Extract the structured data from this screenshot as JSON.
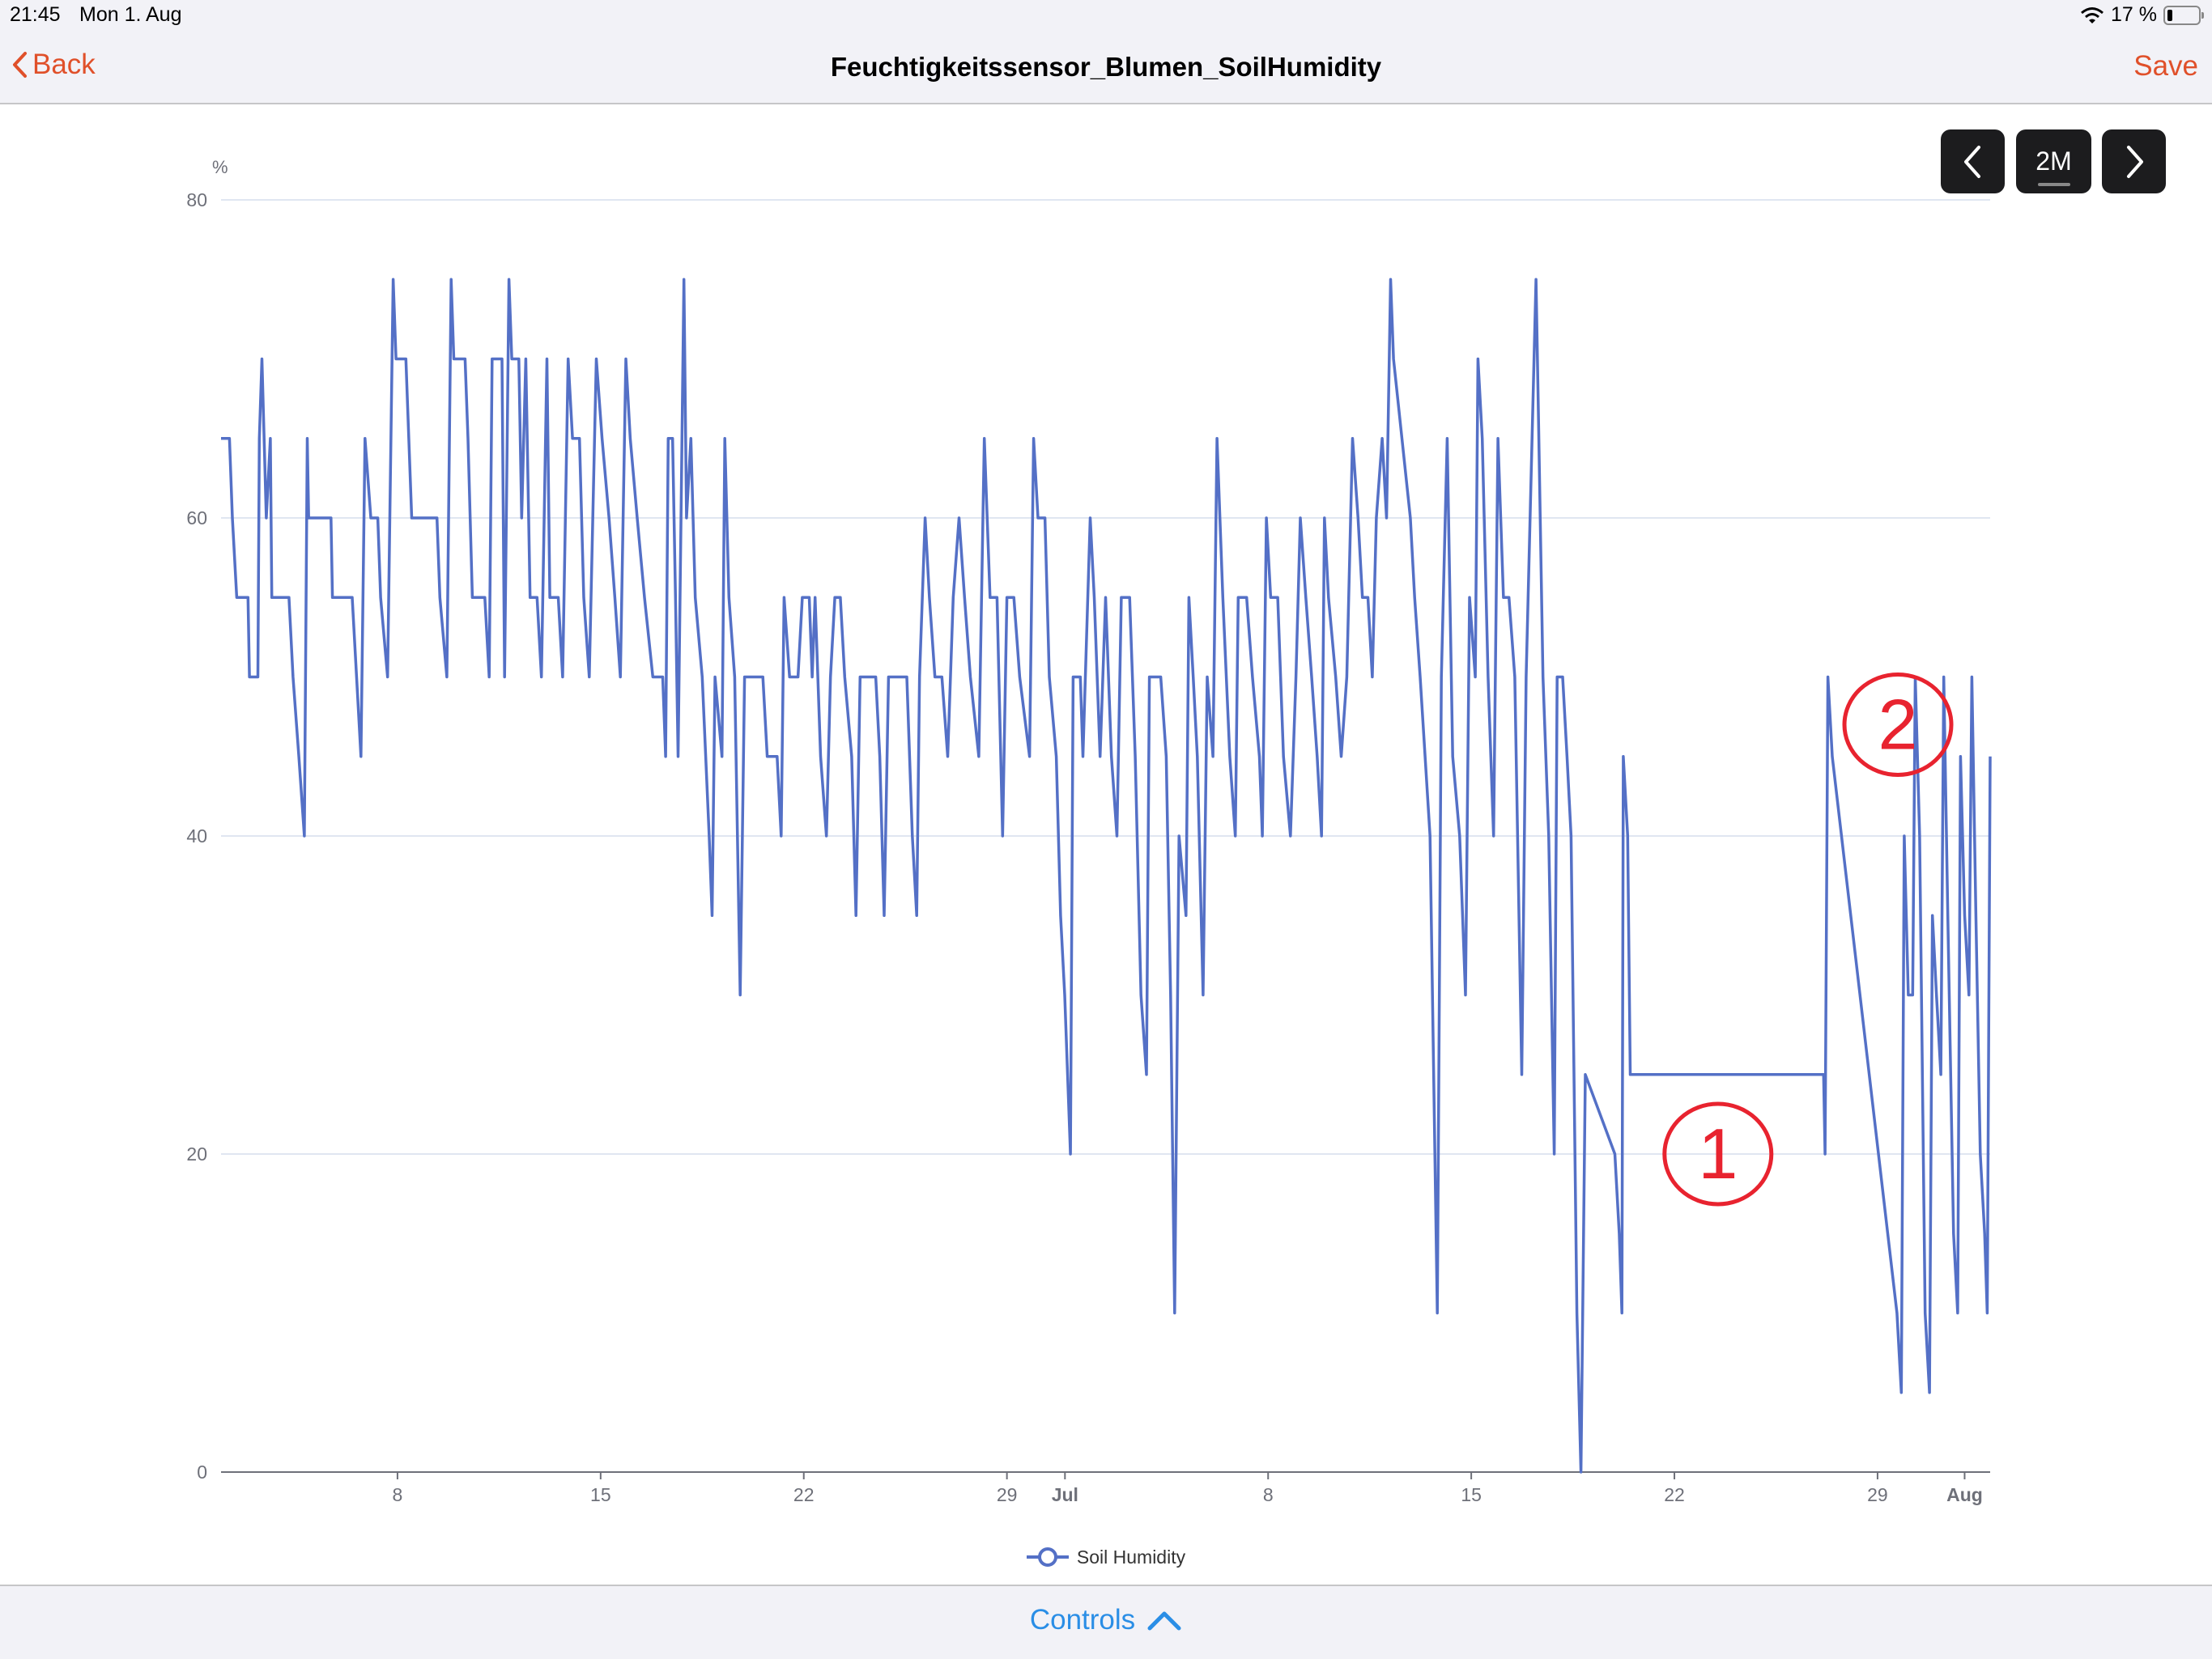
{
  "status_bar": {
    "time": "21:45",
    "date": "Mon 1. Aug",
    "battery": "17 %",
    "battery_level": 0.17
  },
  "nav": {
    "back_label": "Back",
    "title": "Feuchtigkeitssensor_Blumen_SoilHumidity",
    "save_label": "Save"
  },
  "range_controls": {
    "prev_icon": "chevron-left-icon",
    "range_label": "2M",
    "next_icon": "chevron-right-icon"
  },
  "footer": {
    "controls_label": "Controls",
    "icon": "chevron-up-icon"
  },
  "colors": {
    "accent": "#e0502a",
    "series": "#5470c6",
    "link": "#2a8ee6",
    "annotation": "#e8232f"
  },
  "annotations": [
    {
      "text": "1",
      "near_day": 52.5,
      "near_value": 20
    },
    {
      "text": "2",
      "near_day": 58.7,
      "near_value": 47
    }
  ],
  "chart_data": {
    "type": "line",
    "title": "",
    "ylabel": "%",
    "xlabel": "",
    "ylim": [
      0,
      80
    ],
    "yticks": [
      0,
      20,
      40,
      60,
      80
    ],
    "xlim": [
      0.92,
      61.88
    ],
    "xticks": [
      {
        "day": 7,
        "label": "8"
      },
      {
        "day": 14,
        "label": "15"
      },
      {
        "day": 21,
        "label": "22"
      },
      {
        "day": 28,
        "label": "29"
      },
      {
        "day": 30,
        "label": "Jul",
        "bold": true
      },
      {
        "day": 37,
        "label": "8"
      },
      {
        "day": 44,
        "label": "15"
      },
      {
        "day": 51,
        "label": "22"
      },
      {
        "day": 58,
        "label": "29"
      },
      {
        "day": 61,
        "label": "Aug",
        "bold": true
      }
    ],
    "grid": true,
    "legend": {
      "position": "bottom-center",
      "entries": [
        "Soil Humidity"
      ]
    },
    "series": [
      {
        "name": "Soil Humidity",
        "x_days_from_jun1": [
          0.92,
          1.21,
          1.31,
          1.46,
          1.85,
          1.9,
          2.19,
          2.24,
          2.33,
          2.48,
          2.62,
          2.67,
          3.26,
          3.4,
          3.6,
          3.79,
          3.89,
          3.94,
          4.71,
          4.76,
          5.44,
          5.59,
          5.74,
          5.88,
          6.08,
          6.32,
          6.42,
          6.66,
          6.85,
          6.95,
          7.29,
          7.39,
          7.49,
          8.36,
          8.46,
          8.7,
          8.85,
          8.94,
          9.33,
          9.43,
          9.58,
          10.01,
          10.16,
          10.26,
          10.6,
          10.69,
          10.84,
          10.94,
          11.18,
          11.28,
          11.42,
          11.57,
          11.81,
          11.96,
          12.15,
          12.25,
          12.54,
          12.69,
          12.88,
          13.03,
          13.27,
          13.42,
          13.61,
          13.85,
          14.05,
          14.29,
          14.49,
          14.68,
          14.87,
          15.02,
          15.26,
          15.51,
          15.8,
          16.14,
          16.24,
          16.33,
          16.48,
          16.58,
          16.67,
          16.87,
          16.96,
          17.11,
          17.26,
          17.5,
          17.74,
          17.84,
          17.94,
          18.18,
          18.28,
          18.42,
          18.62,
          18.81,
          18.96,
          19.59,
          19.74,
          20.08,
          20.22,
          20.32,
          20.51,
          20.8,
          20.95,
          21.19,
          21.29,
          21.39,
          21.58,
          21.78,
          21.92,
          22.07,
          22.26,
          22.41,
          22.65,
          22.8,
          22.94,
          23.48,
          23.62,
          23.77,
          23.92,
          24.55,
          24.74,
          24.89,
          24.99,
          25.18,
          25.33,
          25.52,
          25.76,
          25.96,
          26.15,
          26.35,
          26.54,
          26.74,
          27.03,
          27.22,
          27.42,
          27.66,
          27.85,
          28.0,
          28.24,
          28.44,
          28.78,
          28.92,
          29.07,
          29.31,
          29.46,
          29.7,
          29.85,
          29.99,
          30.19,
          30.28,
          30.53,
          30.62,
          30.87,
          31.01,
          31.21,
          31.4,
          31.6,
          31.79,
          31.94,
          32.23,
          32.42,
          32.62,
          32.81,
          32.91,
          33.3,
          33.49,
          33.64,
          33.78,
          33.93,
          34.17,
          34.27,
          34.42,
          34.56,
          34.76,
          34.9,
          35.1,
          35.24,
          35.44,
          35.68,
          35.87,
          35.97,
          36.26,
          36.46,
          36.7,
          36.8,
          36.94,
          37.09,
          37.33,
          37.53,
          37.77,
          37.96,
          38.11,
          38.3,
          38.5,
          38.69,
          38.84,
          38.94,
          39.08,
          39.33,
          39.52,
          39.71,
          39.91,
          40.1,
          40.25,
          40.44,
          40.59,
          40.73,
          40.93,
          41.08,
          41.22,
          41.32,
          41.9,
          42.05,
          42.24,
          42.58,
          42.83,
          42.97,
          43.17,
          43.36,
          43.6,
          43.8,
          43.94,
          44.14,
          44.23,
          44.38,
          44.58,
          44.77,
          44.92,
          45.11,
          45.3,
          45.5,
          45.74,
          45.89,
          46.23,
          46.33,
          46.47,
          46.67,
          46.86,
          46.96,
          47.15,
          47.3,
          47.44,
          47.64,
          47.78,
          47.93,
          48.95,
          49.1,
          49.19,
          49.24,
          49.39,
          49.48,
          56.14,
          56.19,
          56.29,
          56.44,
          58.67,
          58.82,
          58.92,
          59.06,
          59.21,
          59.3,
          59.45,
          59.64,
          59.79,
          59.89,
          60.03,
          60.18,
          60.28,
          60.42,
          60.62,
          60.76,
          60.86,
          61.0,
          61.15,
          61.25,
          61.39,
          61.54,
          61.69,
          61.78,
          61.88
        ],
        "values": [
          65,
          65,
          60,
          55,
          55,
          50,
          50,
          65,
          70,
          60,
          65,
          55,
          55,
          50,
          45,
          40,
          65,
          60,
          60,
          55,
          55,
          50,
          45,
          65,
          60,
          60,
          55,
          50,
          75,
          70,
          70,
          65,
          60,
          60,
          55,
          50,
          75,
          70,
          70,
          65,
          55,
          55,
          50,
          70,
          70,
          50,
          75,
          70,
          70,
          60,
          70,
          55,
          55,
          50,
          70,
          55,
          55,
          50,
          70,
          65,
          65,
          55,
          50,
          70,
          65,
          60,
          55,
          50,
          70,
          65,
          60,
          55,
          50,
          50,
          45,
          65,
          65,
          55,
          45,
          75,
          60,
          65,
          55,
          50,
          40,
          35,
          50,
          45,
          65,
          55,
          50,
          30,
          50,
          50,
          45,
          45,
          40,
          55,
          50,
          50,
          55,
          55,
          50,
          55,
          45,
          40,
          50,
          55,
          55,
          50,
          45,
          35,
          50,
          50,
          45,
          35,
          50,
          50,
          40,
          35,
          50,
          60,
          55,
          50,
          50,
          45,
          55,
          60,
          55,
          50,
          45,
          65,
          55,
          55,
          40,
          55,
          55,
          50,
          45,
          65,
          60,
          60,
          50,
          45,
          35,
          30,
          20,
          50,
          50,
          45,
          60,
          55,
          45,
          55,
          45,
          40,
          55,
          55,
          45,
          30,
          25,
          50,
          50,
          45,
          30,
          10,
          40,
          35,
          55,
          50,
          45,
          30,
          50,
          45,
          65,
          55,
          45,
          40,
          55,
          55,
          50,
          45,
          40,
          60,
          55,
          55,
          45,
          40,
          50,
          60,
          55,
          50,
          45,
          40,
          60,
          55,
          50,
          45,
          50,
          65,
          60,
          55,
          55,
          50,
          60,
          65,
          60,
          75,
          70,
          60,
          55,
          50,
          40,
          10,
          50,
          65,
          45,
          40,
          30,
          55,
          50,
          70,
          65,
          50,
          40,
          65,
          55,
          55,
          50,
          25,
          50,
          75,
          65,
          50,
          40,
          20,
          50,
          50,
          45,
          40,
          10,
          0,
          25,
          20,
          15,
          10,
          45,
          40,
          25,
          25,
          20,
          50,
          45,
          10,
          5,
          40,
          30,
          30,
          50,
          40,
          10,
          5,
          35,
          30,
          25,
          50,
          35,
          15,
          10,
          45,
          35,
          30,
          50,
          35,
          20,
          15,
          10,
          45
        ]
      }
    ]
  }
}
